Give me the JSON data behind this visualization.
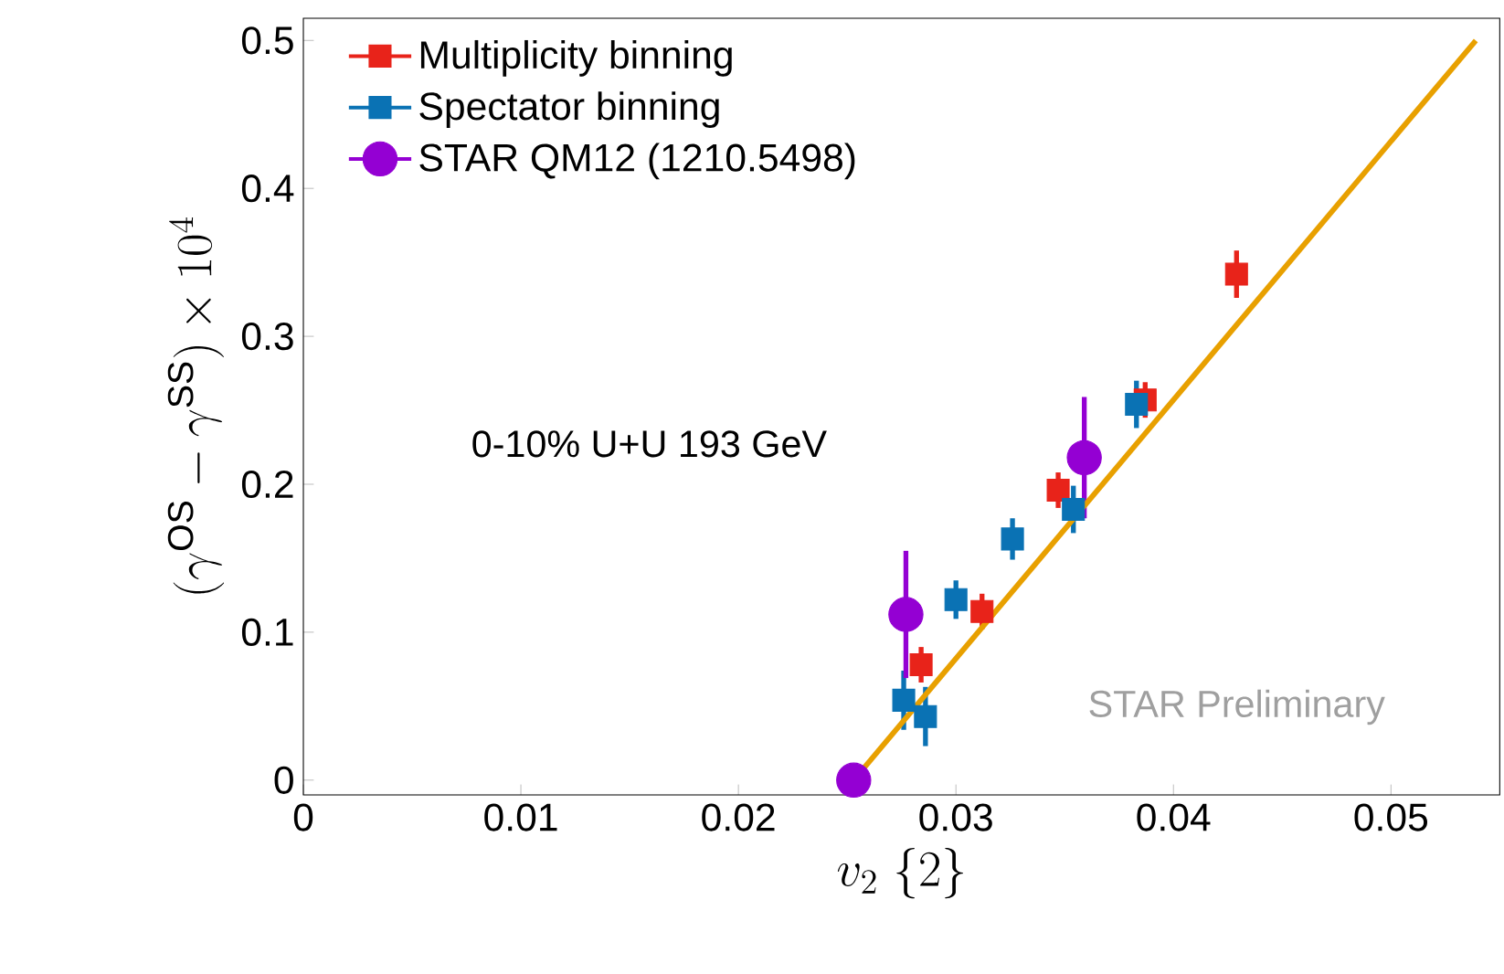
{
  "chart_data": {
    "type": "scatter",
    "xlabel": "v_{2}\\ \\{2\\}",
    "ylabel": "(\\gamma^{\\mathrm{OS}}-\\gamma^{\\mathrm{SS}}) \\times 10^{4}",
    "xlim": [
      0,
      0.055
    ],
    "ylim": [
      -0.01,
      0.515
    ],
    "xticks": [
      0,
      0.01,
      0.02,
      0.03,
      0.04,
      0.05
    ],
    "yticks": [
      0,
      0.1,
      0.2,
      0.3,
      0.4,
      0.5
    ],
    "legend": "top left",
    "annotations": [
      "0-10% U+U 193 GeV",
      "STAR Preliminary"
    ],
    "series": [
      {
        "name": "Multiplicity binning",
        "color": "#e8231a",
        "marker": "square",
        "x": [
          0.0284,
          0.0312,
          0.0347,
          0.0387,
          0.0429
        ],
        "values": [
          0.078,
          0.114,
          0.196,
          0.257,
          0.342
        ],
        "errors": [
          0.012,
          0.012,
          0.012,
          0.012,
          0.016
        ]
      },
      {
        "name": "Spectator binning",
        "color": "#0a72b4",
        "marker": "square",
        "x": [
          0.0276,
          0.0286,
          0.03,
          0.0326,
          0.0354,
          0.0383
        ],
        "values": [
          0.054,
          0.043,
          0.122,
          0.163,
          0.183,
          0.254
        ],
        "errors": [
          0.02,
          0.02,
          0.013,
          0.014,
          0.016,
          0.016
        ]
      },
      {
        "name": "STAR QM12 (1210.5498)",
        "color": "#9400d3",
        "marker": "circle",
        "x": [
          0.0253,
          0.0277,
          0.0359
        ],
        "values": [
          0,
          0.112,
          0.218
        ],
        "errors": [
          null,
          0.043,
          0.041
        ]
      },
      {
        "type": "line",
        "color": "#e8a000",
        "marker": "none",
        "x": [
          0.0253,
          0.0539
        ],
        "values": [
          0,
          0.5
        ]
      }
    ]
  }
}
